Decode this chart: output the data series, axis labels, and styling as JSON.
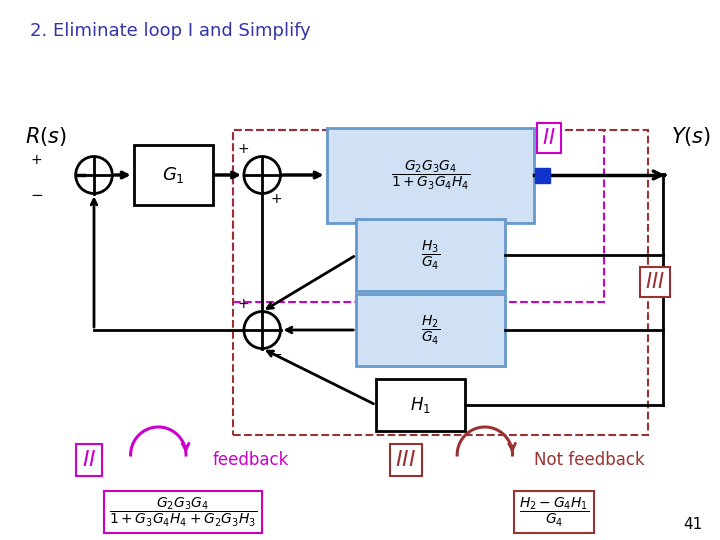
{
  "title": "2. Eliminate loop I and Simplify",
  "title_color": "#3333AA",
  "title_fontsize": 13,
  "background_color": "#ffffff",
  "page_number": "41",
  "colors": {
    "magenta": "#CC00CC",
    "dark_red": "#993333",
    "blue_box_bg": "#D0E0F5",
    "blue_box_border": "#6699CC",
    "black": "#000000",
    "white": "#ffffff"
  }
}
